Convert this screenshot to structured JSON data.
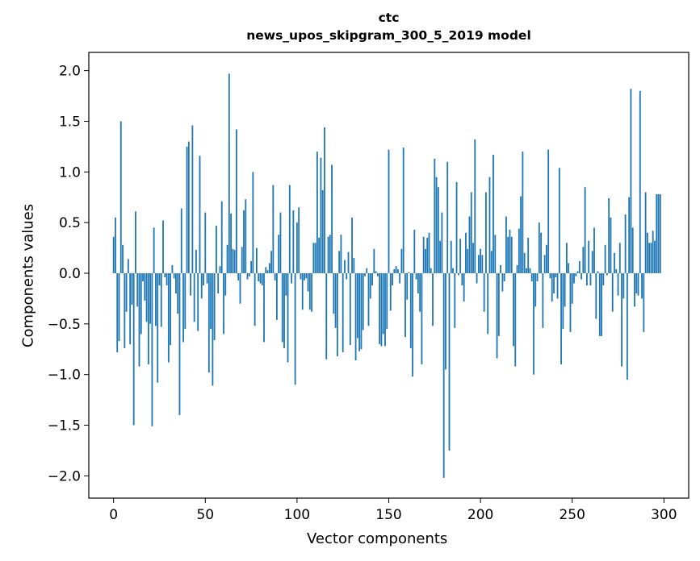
{
  "chart_data": {
    "type": "bar",
    "title": "ctc",
    "subtitle": "news_upos_skipgram_300_5_2019 model",
    "xlabel": "Vector components",
    "ylabel": "Components values",
    "xlim": [
      -13.5,
      313.5
    ],
    "ylim": [
      -2.22,
      2.18
    ],
    "xticks": [
      0,
      50,
      100,
      150,
      200,
      250,
      300
    ],
    "yticks": [
      -2.0,
      -1.5,
      -1.0,
      -0.5,
      0.0,
      0.5,
      1.0,
      1.5,
      2.0
    ],
    "ytick_labels": [
      "−2.0",
      "−1.5",
      "−1.0",
      "−0.5",
      "0.0",
      "0.5",
      "1.0",
      "1.5",
      "2.0"
    ],
    "bar_color": "#1f77b4",
    "x": "indices 0..299",
    "values": [
      0.36,
      0.55,
      -0.78,
      -0.67,
      1.5,
      0.28,
      -0.74,
      -0.38,
      0.14,
      -0.7,
      -0.31,
      -1.5,
      0.61,
      -0.33,
      -0.92,
      -0.6,
      -0.08,
      -0.27,
      -0.48,
      -0.9,
      -0.5,
      -1.51,
      0.45,
      -0.52,
      -1.08,
      -0.12,
      -0.53,
      0.52,
      -0.04,
      -0.12,
      -0.88,
      -0.71,
      0.08,
      -0.05,
      -0.2,
      -0.4,
      -1.4,
      0.64,
      -0.68,
      -0.55,
      1.25,
      1.3,
      -0.22,
      1.46,
      -0.48,
      0.23,
      -0.57,
      1.16,
      -0.25,
      -0.12,
      0.6,
      -0.1,
      -0.98,
      -0.55,
      -1.11,
      -0.66,
      0.47,
      -0.2,
      0.07,
      0.71,
      -0.6,
      -0.22,
      0.28,
      1.97,
      0.59,
      0.24,
      0.23,
      1.42,
      -0.07,
      -0.3,
      0.26,
      0.62,
      0.73,
      -0.06,
      -0.03,
      0.12,
      1.0,
      -0.52,
      0.25,
      -0.08,
      -0.1,
      -0.12,
      -0.68,
      0.06,
      0.03,
      0.1,
      0.22,
      0.87,
      -0.07,
      -0.46,
      0.38,
      0.6,
      -0.68,
      -0.74,
      -0.22,
      -0.88,
      0.87,
      -0.1,
      0.62,
      -1.1,
      0.5,
      0.65,
      -0.06,
      -0.36,
      -0.07,
      -0.05,
      -0.18,
      -0.36,
      -0.38,
      0.3,
      0.3,
      1.2,
      0.35,
      1.14,
      0.82,
      1.44,
      -0.85,
      0.36,
      0.38,
      1.07,
      -0.4,
      -0.54,
      -0.82,
      0.22,
      0.38,
      -0.78,
      0.13,
      -0.06,
      0.21,
      -0.71,
      0.55,
      0.15,
      -0.86,
      -0.64,
      -0.77,
      -0.75,
      -0.56,
      -0.03,
      0.05,
      -0.52,
      -0.25,
      -0.12,
      0.24,
      0.02,
      -0.03,
      -0.7,
      -0.72,
      -0.6,
      -0.72,
      -0.55,
      1.22,
      -0.37,
      -0.12,
      0.04,
      0.07,
      0.04,
      -0.1,
      0.24,
      1.24,
      -0.63,
      -0.26,
      0.01,
      -0.74,
      -1.02,
      0.43,
      -0.06,
      -0.2,
      -0.38,
      -0.9,
      0.36,
      0.24,
      0.35,
      0.4,
      0.05,
      -0.52,
      1.13,
      0.95,
      0.85,
      0.32,
      0.6,
      -2.02,
      -0.95,
      1.1,
      -1.75,
      0.32,
      0.05,
      -0.54,
      0.9,
      -0.02,
      0.34,
      -0.12,
      -0.28,
      0.4,
      0.24,
      0.56,
      0.8,
      0.3,
      1.32,
      -0.1,
      0.18,
      0.24,
      0.18,
      -0.38,
      0.8,
      -0.6,
      0.95,
      0.22,
      1.17,
      0.38,
      -0.84,
      -0.62,
      0.08,
      -0.18,
      -0.08,
      0.56,
      0.36,
      0.43,
      0.36,
      -0.72,
      -0.92,
      0.08,
      0.44,
      0.76,
      1.2,
      0.2,
      0.05,
      0.35,
      0.05,
      -0.08,
      -1.0,
      -0.33,
      -0.08,
      0.5,
      0.4,
      -0.54,
      0.18,
      0.28,
      1.22,
      -0.05,
      -0.28,
      -0.2,
      -0.04,
      -0.25,
      1.04,
      -0.9,
      -0.55,
      -0.33,
      0.3,
      0.1,
      -0.58,
      -0.3,
      -0.1,
      -0.03,
      0.02,
      0.12,
      -0.06,
      0.26,
      0.85,
      -0.12,
      0.32,
      -0.12,
      0.22,
      0.45,
      -0.45,
      0.02,
      -0.62,
      -0.62,
      -0.12,
      0.28,
      -0.02,
      0.74,
      0.55,
      -0.38,
      0.2,
      0.04,
      -0.22,
      0.3,
      -0.92,
      -0.25,
      0.58,
      -1.05,
      0.75,
      1.82,
      0.45,
      -0.33,
      -0.2,
      -0.22,
      1.8,
      -0.25,
      -0.58,
      0.8,
      0.4,
      0.3,
      0.3,
      0.42,
      0.32,
      0.78,
      0.78,
      0.78
    ]
  }
}
